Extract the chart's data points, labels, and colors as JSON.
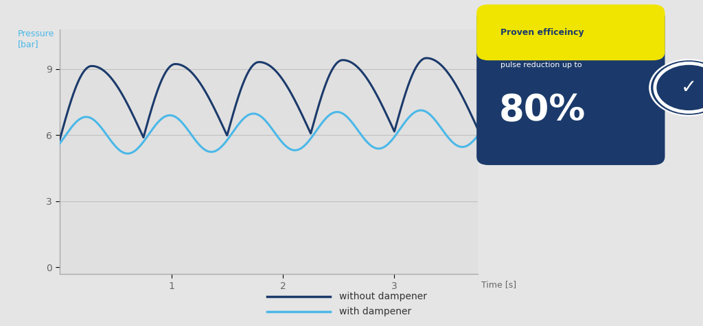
{
  "background_color": "#e5e5e5",
  "plot_bg_color": "#e0e0e0",
  "dark_blue": "#1b3a6b",
  "light_blue": "#4ab8e8",
  "axis_color": "#aaaaaa",
  "tick_color": "#666666",
  "ylabel": "Pressure\n[bar]",
  "xlabel": "Time [s]",
  "yticks": [
    0,
    3,
    6,
    9
  ],
  "xticks": [
    1,
    2,
    3
  ],
  "xlim": [
    0,
    3.75
  ],
  "ylim": [
    -0.3,
    10.8
  ],
  "legend1": "without dampener",
  "legend2": "with dampener",
  "badge_title": "Proven efficeincy",
  "badge_sub": "pulse reduction up to",
  "badge_val": "80%",
  "period": 0.75,
  "dark_amplitude": 3.3,
  "dark_mean": 5.8,
  "light_amplitude": 0.85,
  "light_mean": 5.95
}
